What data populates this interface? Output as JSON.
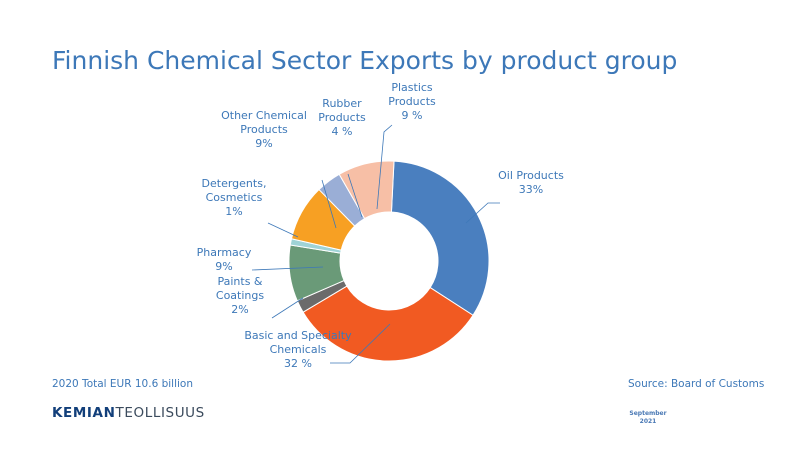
{
  "title": "Finnish Chemical Sector Exports by product group",
  "total_note": "2020 Total EUR 10.6 billion",
  "source": "Source: Board of Customs",
  "brand": {
    "bold": "KEMIAN",
    "light": "TEOLLISUUS"
  },
  "date": {
    "month": "September",
    "year": "2021"
  },
  "chart_data": {
    "type": "pie",
    "variant": "donut",
    "slices": [
      {
        "label_lines": [
          "Oil Products",
          "33%"
        ],
        "value": 33,
        "color": "#4a7fbf"
      },
      {
        "label_lines": [
          "Basic and Specialty",
          "Chemicals",
          "32 %"
        ],
        "value": 32,
        "color": "#f15a22"
      },
      {
        "label_lines": [
          "Paints &",
          "Coatings",
          "2%"
        ],
        "value": 2,
        "color": "#6b6b6b"
      },
      {
        "label_lines": [
          "Pharmacy",
          "9%"
        ],
        "value": 9,
        "color": "#6a9a78"
      },
      {
        "label_lines": [
          "Detergents,",
          "Cosmetics",
          "1%"
        ],
        "value": 1,
        "color": "#9fd3d6"
      },
      {
        "label_lines": [
          "Other Chemical",
          "Products",
          "9%"
        ],
        "value": 9,
        "color": "#f7a023"
      },
      {
        "label_lines": [
          "Rubber",
          "Products",
          "4 %"
        ],
        "value": 4,
        "color": "#9aaed6"
      },
      {
        "label_lines": [
          "Plastics",
          "Products",
          "9 %"
        ],
        "value": 9,
        "color": "#f7bfa6"
      }
    ]
  }
}
